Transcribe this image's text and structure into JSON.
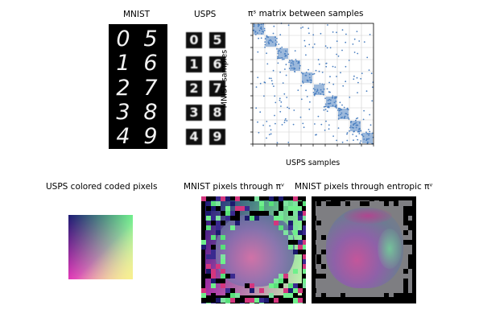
{
  "figure": {
    "mnist_title": "MNIST",
    "usps_title": "USPS",
    "matrix_title": "πˢ matrix between samples",
    "matrix_ylabel": "MNIST samples",
    "matrix_xlabel": "USPS samples",
    "usps_pixels_title": "USPS colored coded pixels",
    "mnist_through_title": "MNIST pixels through πᵛ",
    "mnist_entropic_title": "MNIST pixels through entropic πᵛ"
  },
  "digits": {
    "mnist": [
      [
        "0",
        "5"
      ],
      [
        "1",
        "6"
      ],
      [
        "2",
        "7"
      ],
      [
        "3",
        "8"
      ],
      [
        "4",
        "9"
      ]
    ],
    "usps": [
      [
        "0",
        "5"
      ],
      [
        "1",
        "6"
      ],
      [
        "2",
        "7"
      ],
      [
        "3",
        "8"
      ],
      [
        "4",
        "9"
      ]
    ]
  },
  "colors": {
    "scatter": "#4a7fc0",
    "grid": "#cfcfcf",
    "entropic_background": "#7e7e82"
  }
}
